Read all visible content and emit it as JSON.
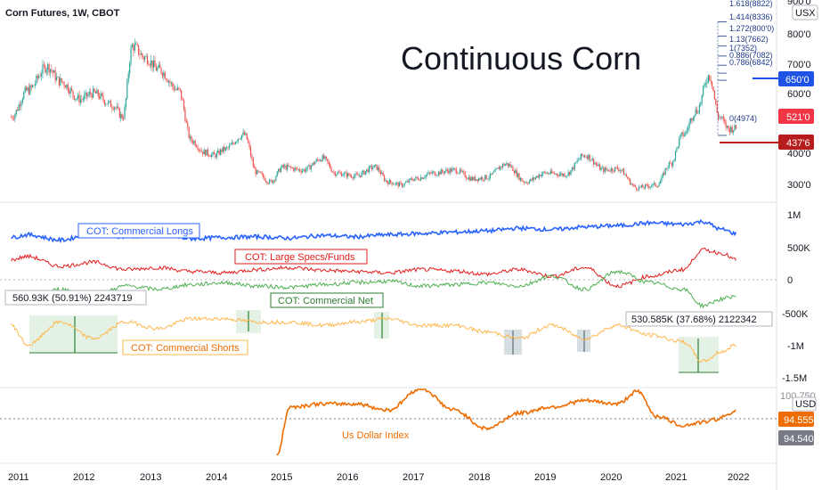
{
  "header": {
    "symbol": "Corn Futures, 1W, CBOT"
  },
  "title": "Continuous Corn",
  "colors": {
    "up": "#26a69a",
    "down": "#ef5350",
    "longs": "#2962ff",
    "specs": "#e31b1b",
    "net": "#4caf50",
    "shorts": "#ffb74d",
    "dxy": "#ef6c00",
    "price_tag": "#f23645",
    "blue_tag": "#1e53e5",
    "dark_tag": "#b71c1c",
    "grey_tag": "#787b86"
  },
  "price_axis": {
    "unit": "USX",
    "ticks": [
      "900'0",
      "800'0",
      "700'0",
      "600'0",
      "400'0",
      "300'0"
    ],
    "fib_levels": [
      "1.618(8822)",
      "1.414(8336)",
      "1.272(800'0)",
      "1.13(7662)",
      "1(7352)",
      "0.886(7082)",
      "0.786(6842)",
      "0(4974)"
    ],
    "tags": {
      "level_high": "650'0",
      "last": "521'0",
      "level_low": "437'6"
    }
  },
  "cot_axis": {
    "ticks": [
      "1M",
      "500K",
      "0",
      "-500K",
      "-1M",
      "-1.5M"
    ]
  },
  "dxy_axis": {
    "unit": "USD",
    "ticks": [
      "100.750"
    ],
    "tags": {
      "last": "94.555",
      "prev": "94.540"
    }
  },
  "time_axis": {
    "ticks": [
      "2011",
      "2012",
      "2013",
      "2014",
      "2015",
      "2016",
      "2017",
      "2018",
      "2019",
      "2020",
      "2021",
      "2022"
    ]
  },
  "labels": {
    "longs": "COT: Commercial Longs",
    "specs": "COT: Large Specs/Funds",
    "net": "COT: Commercial Net",
    "shorts": "COT: Commercial Shorts",
    "dxy": "Us Dollar Index"
  },
  "measures": {
    "left": "560.93K (50.91%) 2243719",
    "right": "530.585K (37.68%) 2122342"
  },
  "chart_data": [
    {
      "type": "candlestick",
      "title": "Corn Futures, 1W, CBOT",
      "ylabel": "USX",
      "ylim": [
        280,
        950
      ],
      "x": [
        2010.75,
        2011.0,
        2011.3,
        2011.5,
        2011.8,
        2012.0,
        2012.3,
        2012.45,
        2012.6,
        2012.8,
        2013.0,
        2013.3,
        2013.5,
        2013.7,
        2013.85,
        2014.0,
        2014.3,
        2014.5,
        2014.7,
        2014.9,
        2015.2,
        2015.5,
        2015.7,
        2016.0,
        2016.3,
        2016.5,
        2016.7,
        2016.9,
        2017.2,
        2017.5,
        2017.8,
        2018.0,
        2018.3,
        2018.6,
        2018.9,
        2019.2,
        2019.5,
        2019.8,
        2020.0,
        2020.3,
        2020.6,
        2020.8,
        2021.0,
        2021.2,
        2021.4,
        2021.55,
        2021.7,
        2021.8
      ],
      "close": [
        560,
        650,
        730,
        680,
        620,
        640,
        600,
        560,
        800,
        760,
        720,
        650,
        480,
        440,
        430,
        450,
        500,
        370,
        340,
        390,
        380,
        420,
        370,
        360,
        390,
        340,
        330,
        350,
        370,
        380,
        350,
        355,
        400,
        340,
        370,
        365,
        430,
        380,
        385,
        320,
        330,
        400,
        500,
        580,
        700,
        560,
        520,
        521
      ],
      "fib_levels": [
        {
          "ratio": 1.618,
          "value": 882.2
        },
        {
          "ratio": 1.414,
          "value": 833.6
        },
        {
          "ratio": 1.272,
          "value": 800.0
        },
        {
          "ratio": 1.13,
          "value": 766.2
        },
        {
          "ratio": 1.0,
          "value": 735.2
        },
        {
          "ratio": 0.886,
          "value": 708.2
        },
        {
          "ratio": 0.786,
          "value": 684.2
        },
        {
          "ratio": 0,
          "value": 497.4
        }
      ],
      "levels": [
        650,
        437.75
      ]
    },
    {
      "type": "line",
      "ylim": [
        -1500000,
        1000000
      ],
      "x": [
        2010.75,
        2011.0,
        2011.5,
        2012.0,
        2012.5,
        2013.0,
        2013.5,
        2014.0,
        2014.5,
        2015.0,
        2015.5,
        2016.0,
        2016.5,
        2017.0,
        2017.5,
        2018.0,
        2018.5,
        2019.0,
        2019.5,
        2020.0,
        2020.5,
        2021.0,
        2021.3,
        2021.6,
        2021.8
      ],
      "series": [
        {
          "name": "COT: Commercial Longs",
          "values": [
            640000,
            680000,
            600000,
            700000,
            650000,
            680000,
            620000,
            640000,
            650000,
            630000,
            670000,
            650000,
            680000,
            700000,
            720000,
            740000,
            780000,
            760000,
            800000,
            820000,
            860000,
            840000,
            880000,
            760000,
            700000
          ]
        },
        {
          "name": "COT: Large Specs/Funds",
          "values": [
            300000,
            350000,
            200000,
            260000,
            150000,
            180000,
            120000,
            100000,
            150000,
            180000,
            140000,
            120000,
            100000,
            150000,
            130000,
            80000,
            150000,
            50000,
            180000,
            -100000,
            50000,
            150000,
            450000,
            400000,
            300000
          ]
        },
        {
          "name": "COT: Commercial Net",
          "values": [
            -300000,
            -350000,
            -150000,
            -250000,
            -100000,
            -150000,
            -80000,
            -50000,
            -100000,
            -120000,
            -80000,
            -50000,
            -30000,
            -100000,
            -80000,
            -50000,
            -100000,
            50000,
            -150000,
            120000,
            -50000,
            -150000,
            -400000,
            -300000,
            -250000
          ]
        },
        {
          "name": "COT: Commercial Shorts",
          "values": [
            -700000,
            -1000000,
            -650000,
            -900000,
            -650000,
            -750000,
            -600000,
            -600000,
            -650000,
            -650000,
            -700000,
            -650000,
            -600000,
            -700000,
            -700000,
            -800000,
            -900000,
            -700000,
            -900000,
            -700000,
            -850000,
            -950000,
            -1250000,
            -1100000,
            -1000000
          ]
        }
      ]
    },
    {
      "type": "line",
      "title": "Us Dollar Index",
      "ylabel": "USD",
      "ylim": [
        78,
        102
      ],
      "x": [
        2014.8,
        2015.0,
        2015.5,
        2016.0,
        2016.5,
        2017.0,
        2017.5,
        2018.0,
        2018.5,
        2019.0,
        2019.5,
        2020.0,
        2020.3,
        2020.6,
        2021.0,
        2021.3,
        2021.5,
        2021.8
      ],
      "series": [
        {
          "name": "Us Dollar Index",
          "values": [
            80,
            96,
            97,
            97,
            95,
            102,
            95,
            89,
            94,
            96,
            98,
            97,
            101,
            93,
            90,
            91,
            92,
            94.555
          ]
        }
      ]
    }
  ]
}
